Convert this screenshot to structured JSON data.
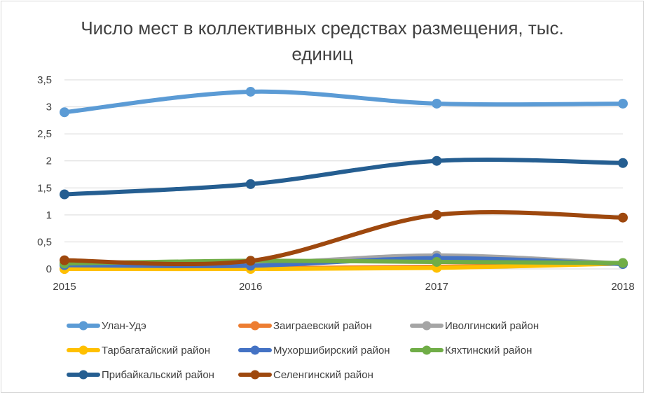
{
  "chart_data": {
    "type": "line",
    "title_line1": "Число мест в коллективных средствах размещения, тыс.",
    "title_line2": "единиц",
    "x": [
      "2015",
      "2016",
      "2017",
      "2018"
    ],
    "ylim": [
      0,
      3.5
    ],
    "yticks": [
      "0",
      "0,5",
      "1",
      "1,5",
      "2",
      "2,5",
      "3",
      "3,5"
    ],
    "grid": true,
    "legend_position": "bottom",
    "smooth": true,
    "series": [
      {
        "name": "Улан-Удэ",
        "color": "#5b9bd5",
        "values": [
          2.9,
          3.28,
          3.06,
          3.06
        ]
      },
      {
        "name": "Заиграевский район",
        "color": "#ed7d31",
        "values": [
          0.0,
          0.01,
          0.04,
          0.1
        ]
      },
      {
        "name": "Иволгинский район",
        "color": "#a5a5a5",
        "values": [
          0.1,
          0.1,
          0.25,
          0.1
        ]
      },
      {
        "name": "Тарбагатайский район",
        "color": "#ffc000",
        "values": [
          0.0,
          0.0,
          0.02,
          0.1
        ]
      },
      {
        "name": "Мухоршибирский район",
        "color": "#4472c4",
        "values": [
          0.07,
          0.06,
          0.2,
          0.09
        ]
      },
      {
        "name": "Кяхтинский район",
        "color": "#70ad47",
        "values": [
          0.1,
          0.15,
          0.13,
          0.11
        ]
      },
      {
        "name": "Прибайкальский район",
        "color": "#255e91",
        "values": [
          1.38,
          1.57,
          2.0,
          1.96
        ]
      },
      {
        "name": "Селенгинский район",
        "color": "#9e480e",
        "values": [
          0.16,
          0.15,
          1.0,
          0.95
        ]
      }
    ]
  }
}
